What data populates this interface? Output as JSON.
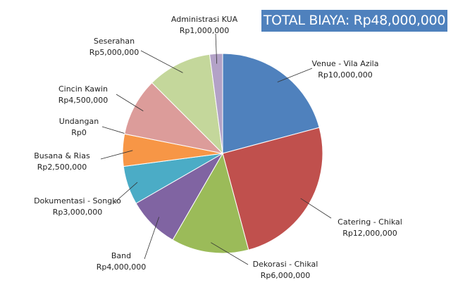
{
  "chart_data": {
    "type": "pie",
    "title": "TOTAL BIAYA: Rp48,000,000",
    "start": "top, clockwise",
    "slices": [
      {
        "label": "Venue - Vila Azila",
        "value": 10000000,
        "value_label": "Rp10,000,000",
        "color": "#4f81bd"
      },
      {
        "label": "Catering - Chikal",
        "value": 12000000,
        "value_label": "Rp12,000,000",
        "color": "#c0504d"
      },
      {
        "label": "Dekorasi - Chikal",
        "value": 6000000,
        "value_label": "Rp6,000,000",
        "color": "#9bbb59"
      },
      {
        "label": "Band",
        "value": 4000000,
        "value_label": "Rp4,000,000",
        "color": "#8064a2"
      },
      {
        "label": "Dokumentasi - Songko",
        "value": 3000000,
        "value_label": "Rp3,000,000",
        "color": "#4bacc6"
      },
      {
        "label": "Busana & Rias",
        "value": 2500000,
        "value_label": "Rp2,500,000",
        "color": "#f79646"
      },
      {
        "label": "Undangan",
        "value": 0,
        "value_label": "Rp0",
        "color": "#2c4d75"
      },
      {
        "label": "Cincin Kawin",
        "value": 4500000,
        "value_label": "Rp4,500,000",
        "color": "#dc9c9a"
      },
      {
        "label": "Seserahan",
        "value": 5000000,
        "value_label": "Rp5,000,000",
        "color": "#c4d79b"
      },
      {
        "label": "Administrasi KUA",
        "value": 1000000,
        "value_label": "Rp1,000,000",
        "color": "#b3a2c7"
      }
    ],
    "legend": "none"
  }
}
